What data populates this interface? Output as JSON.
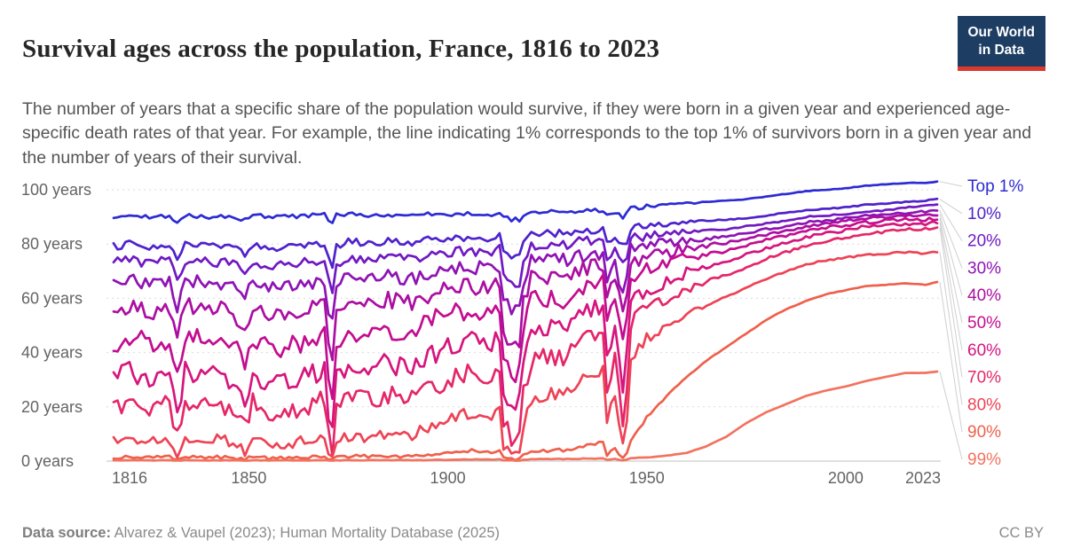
{
  "header": {
    "title": "Survival ages across the population, France, 1816 to 2023",
    "subtitle": "The number of years that a specific share of the population would survive, if they were born in a given year and experienced age-specific death rates of that year. For example, the line indicating 1% corresponds to the top 1% of survivors born in a given year and the number of years of their survival.",
    "logo": {
      "line1": "Our World",
      "line2": "in Data",
      "bg_color": "#1d3d63",
      "accent_color": "#dc3a2e"
    }
  },
  "footer": {
    "datasource_label": "Data source:",
    "datasource_text": " Alvarez & Vaupel (2023); Human Mortality Database (2025)",
    "license": "CC BY"
  },
  "chart_data": {
    "type": "line",
    "title": "Survival ages across the population, France, 1816 to 2023",
    "xlabel": "",
    "ylabel": "",
    "xlim": [
      1816,
      2023
    ],
    "ylim": [
      0,
      100
    ],
    "grid": "horizontal-dashed",
    "legend_position": "right",
    "xticks": [
      1816,
      1850,
      1900,
      1950,
      2000,
      2023
    ],
    "yticks": [
      0,
      20,
      40,
      60,
      80,
      100
    ],
    "ytick_labels": [
      "0 years",
      "20 years",
      "40 years",
      "60 years",
      "80 years",
      "100 years"
    ],
    "axis_text_color": "#636363",
    "grid_color": "#d9d9d9",
    "zero_line_color": "#c2c2c2",
    "connector_color": "#cfcfcf",
    "anchor_years": [
      1816,
      1820,
      1826,
      1830,
      1832,
      1834,
      1840,
      1846,
      1847,
      1849,
      1851,
      1855,
      1859,
      1866,
      1869,
      1870,
      1871,
      1872,
      1875,
      1880,
      1885,
      1890,
      1895,
      1900,
      1906,
      1911,
      1913,
      1914,
      1916,
      1918,
      1919,
      1921,
      1926,
      1929,
      1934,
      1939,
      1940,
      1942,
      1944,
      1945,
      1946,
      1948,
      1950,
      1955,
      1960,
      1965,
      1970,
      1975,
      1980,
      1985,
      1990,
      1995,
      2000,
      2005,
      2010,
      2015,
      2020,
      2023
    ],
    "series": [
      {
        "name": "Top 1%",
        "color": "#2d2bd3",
        "jitter": 0.8,
        "values": [
          90,
          90.5,
          90,
          90.5,
          88.5,
          90.5,
          90,
          90,
          89.5,
          89,
          90.5,
          90,
          90,
          90.5,
          91,
          88.5,
          87.5,
          90.5,
          91,
          90.5,
          91,
          90.5,
          91,
          91,
          91.5,
          91,
          92,
          90,
          89,
          89,
          90.5,
          92,
          92,
          92,
          92.5,
          92.5,
          91,
          91.5,
          90,
          91,
          93,
          93.5,
          94,
          94.5,
          95,
          95.5,
          96,
          96.5,
          97.5,
          98.5,
          99.5,
          100,
          100.5,
          101.5,
          102,
          102.5,
          102.5,
          103
        ]
      },
      {
        "name": "10%",
        "color": "#4e22cc",
        "jitter": 1.3,
        "values": [
          79,
          80,
          79,
          80,
          74,
          80,
          79.5,
          79,
          78,
          76,
          80,
          78.5,
          79,
          80,
          80.5,
          75,
          72.5,
          79.5,
          81,
          80.5,
          81,
          80.5,
          81.5,
          82,
          82.5,
          82,
          83,
          77,
          74.5,
          75,
          80,
          83.5,
          84,
          84,
          85,
          85.5,
          81,
          83,
          79,
          81,
          86,
          86.5,
          87,
          87.5,
          88,
          88.5,
          89,
          89.5,
          90.5,
          91.5,
          92.5,
          93,
          93.5,
          94.5,
          95,
          95.5,
          96,
          96.5
        ]
      },
      {
        "name": "20%",
        "color": "#7019c3",
        "jitter": 1.8,
        "values": [
          73,
          74,
          73,
          74,
          66,
          74,
          73.5,
          73,
          71.5,
          69,
          74,
          72,
          72.5,
          74,
          74.5,
          66,
          62,
          73,
          75,
          74.5,
          75,
          74.5,
          76,
          77,
          77.5,
          77,
          78,
          69,
          65,
          66,
          74,
          79,
          79.5,
          79.5,
          81,
          81.5,
          75,
          78,
          72,
          75,
          82,
          82.5,
          83,
          84,
          84.5,
          85,
          85.5,
          86.5,
          87.5,
          88.5,
          90,
          90.5,
          91,
          92,
          92.5,
          93.5,
          94,
          94.5
        ]
      },
      {
        "name": "30%",
        "color": "#8f13b4",
        "jitter": 2.6,
        "values": [
          65,
          66.5,
          65,
          66,
          56,
          66.5,
          66,
          65,
          63,
          60,
          66.5,
          63.5,
          64,
          66,
          67,
          56,
          50,
          65,
          67.5,
          67,
          68,
          67,
          69,
          70.5,
          71.5,
          71,
          72,
          60,
          54,
          56,
          67,
          73.5,
          74,
          74,
          76,
          77,
          68,
          72,
          63,
          68,
          78,
          79,
          79.5,
          80.5,
          81.5,
          82,
          83,
          84,
          85.5,
          86.5,
          88,
          88.5,
          89.5,
          90.5,
          91,
          91.5,
          92,
          92.5
        ]
      },
      {
        "name": "40%",
        "color": "#ab0fa2",
        "jitter": 3.2,
        "values": [
          55,
          57,
          55,
          56.5,
          44,
          57,
          56.5,
          55,
          52.5,
          49,
          57,
          53,
          54,
          56.5,
          58,
          44,
          36,
          55,
          58.5,
          58,
          59.5,
          58,
          61,
          63,
          64.5,
          64,
          65.5,
          49,
          42,
          45,
          59,
          67,
          68,
          68,
          70.5,
          72,
          60,
          66,
          53,
          60,
          73.5,
          74.5,
          75.5,
          77,
          78.5,
          79.5,
          80.5,
          82,
          83.5,
          85,
          86.5,
          87.5,
          88.5,
          89.5,
          90,
          90.5,
          90.5,
          91
        ]
      },
      {
        "name": "50%",
        "color": "#c30d90",
        "jitter": 3.8,
        "values": [
          43,
          46,
          43,
          45.5,
          30,
          46,
          45,
          43,
          40.5,
          36,
          46,
          41,
          42,
          45,
          47,
          31,
          22,
          43,
          47.5,
          47,
          49,
          47,
          51,
          54,
          56,
          55,
          57,
          38,
          30,
          34,
          50,
          59,
          60,
          60,
          63.5,
          65.5,
          51,
          58,
          42,
          51,
          67.5,
          69,
          70.5,
          72.5,
          74.5,
          76,
          77.5,
          79.5,
          81.5,
          83,
          85,
          86,
          87,
          88,
          88.5,
          89,
          89,
          89.5
        ]
      },
      {
        "name": "60%",
        "color": "#d6157e",
        "jitter": 3.8,
        "values": [
          30,
          33,
          30,
          32.5,
          17,
          33,
          32,
          30,
          27.5,
          23,
          33,
          28,
          29,
          32,
          34,
          18,
          10,
          30,
          34.5,
          34,
          36,
          34,
          38,
          42,
          44.5,
          43,
          45.5,
          26,
          18,
          22,
          38,
          48,
          49.5,
          49,
          54,
          57,
          40,
          48,
          29,
          40,
          59.5,
          62,
          64,
          67,
          69.5,
          71.5,
          73.5,
          76,
          78.5,
          80.5,
          82.5,
          84,
          85,
          86.5,
          87,
          87.5,
          87.5,
          88
        ]
      },
      {
        "name": "70%",
        "color": "#e52769",
        "jitter": 3.4,
        "values": [
          19,
          22,
          19,
          21.5,
          9,
          22,
          21,
          19,
          16.5,
          13,
          22,
          17,
          18,
          21,
          23,
          9,
          4,
          19,
          23,
          22.5,
          24.5,
          22.5,
          26,
          30,
          33,
          31,
          34,
          15,
          9,
          12,
          26,
          37,
          38.5,
          38,
          44,
          48,
          28,
          37,
          15,
          28,
          51,
          54,
          56.5,
          60.5,
          63.5,
          66,
          68.5,
          71.5,
          74.5,
          77,
          79.5,
          81,
          82.5,
          84,
          84.5,
          85.5,
          85.5,
          86
        ]
      },
      {
        "name": "80%",
        "color": "#ee4355",
        "jitter": 2.2,
        "values": [
          7,
          9,
          7,
          8.5,
          2.5,
          9,
          8.5,
          7,
          5.5,
          4,
          9,
          6,
          6.5,
          8,
          9.5,
          3,
          1.5,
          7,
          9.5,
          9,
          10.5,
          9,
          12,
          15,
          18,
          16.5,
          19,
          6,
          3,
          4.5,
          13,
          23,
          25,
          24.5,
          30,
          34,
          16,
          25,
          6,
          16,
          38,
          42,
          45,
          50,
          54,
          57.5,
          60.5,
          64,
          67,
          70,
          72.5,
          74,
          75,
          76,
          76.5,
          77,
          76.5,
          77
        ]
      },
      {
        "name": "90%",
        "color": "#ef604c",
        "jitter": 0.6,
        "values": [
          1.2,
          1.6,
          1.3,
          1.5,
          0.5,
          1.6,
          1.5,
          1.3,
          1,
          0.7,
          1.6,
          1.1,
          1.2,
          1.5,
          1.8,
          0.6,
          0.4,
          1.3,
          1.8,
          1.7,
          2,
          1.7,
          2.3,
          3,
          4,
          3.5,
          4.2,
          1.2,
          0.7,
          1,
          2.8,
          3.5,
          4,
          4,
          5.5,
          7,
          2.5,
          4.5,
          1,
          2.5,
          8,
          12,
          16,
          24,
          31,
          37,
          42,
          47,
          52,
          56,
          59,
          61.5,
          63,
          64.5,
          65,
          65.5,
          65,
          66
        ]
      },
      {
        "name": "99%",
        "color": "#f2735f",
        "jitter": 0.12,
        "values": [
          0.3,
          0.35,
          0.3,
          0.32,
          0.15,
          0.35,
          0.3,
          0.3,
          0.25,
          0.2,
          0.35,
          0.3,
          0.3,
          0.3,
          0.35,
          0.15,
          0.1,
          0.3,
          0.35,
          0.35,
          0.4,
          0.35,
          0.4,
          0.5,
          0.6,
          0.55,
          0.6,
          0.3,
          0.2,
          0.25,
          0.4,
          0.7,
          0.8,
          0.75,
          0.9,
          1,
          0.5,
          0.8,
          0.3,
          0.5,
          1,
          1.2,
          1.4,
          2,
          3,
          5.5,
          9,
          14,
          18,
          21,
          24,
          26,
          27.5,
          29.5,
          31,
          32.5,
          32.5,
          33
        ]
      }
    ]
  }
}
